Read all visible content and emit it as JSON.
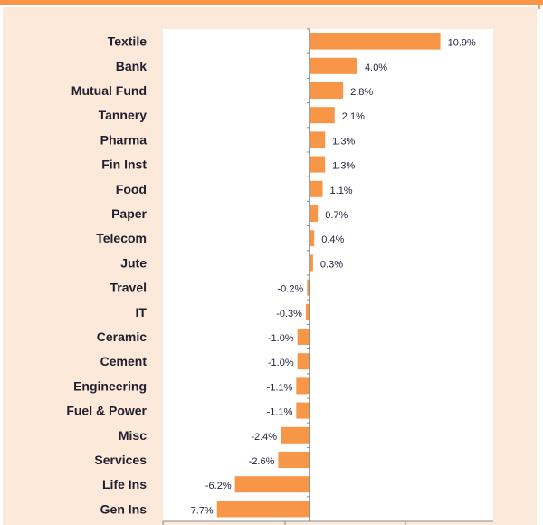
{
  "chart_data": {
    "type": "bar",
    "orientation": "horizontal",
    "categories": [
      "Textile",
      "Bank",
      "Mutual Fund",
      "Tannery",
      "Pharma",
      "Fin Inst",
      "Food",
      "Paper",
      "Telecom",
      "Jute",
      "Travel",
      "IT",
      "Ceramic",
      "Cement",
      "Engineering",
      "Fuel & Power",
      "Misc",
      "Services",
      "Life Ins",
      "Gen Ins"
    ],
    "values": [
      10.9,
      4.0,
      2.8,
      2.1,
      1.3,
      1.3,
      1.1,
      0.7,
      0.4,
      0.3,
      -0.2,
      -0.3,
      -1.0,
      -1.0,
      -1.1,
      -1.1,
      -2.4,
      -2.6,
      -6.2,
      -7.7
    ],
    "labels": [
      "10.9%",
      "4.0%",
      "2.8%",
      "2.1%",
      "1.3%",
      "1.3%",
      "1.1%",
      "0.7%",
      "0.4%",
      "0.3%",
      "-0.2%",
      "-0.3%",
      "-1.0%",
      "-1.0%",
      "-1.1%",
      "-1.1%",
      "-2.4%",
      "-2.6%",
      "-6.2%",
      "-7.7%"
    ],
    "xlim": [
      -12.2,
      15.3
    ],
    "grid": false,
    "legend": "none",
    "colors": {
      "bar": "#f79646",
      "panel": "#fde9d9",
      "border": "#f79646"
    }
  }
}
